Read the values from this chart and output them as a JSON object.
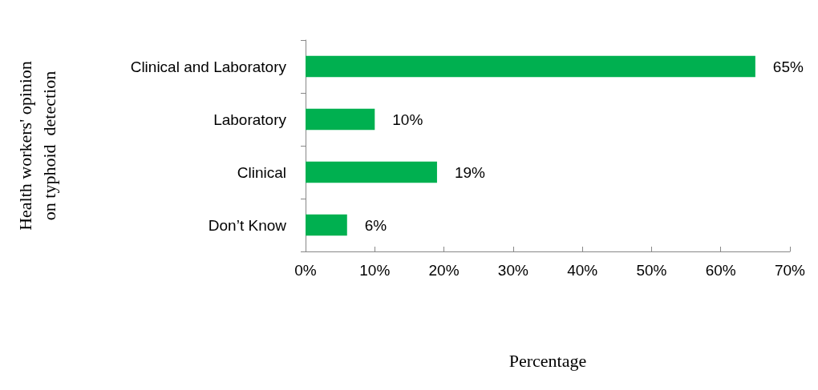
{
  "chart_data": {
    "type": "bar",
    "orientation": "horizontal",
    "categories": [
      "Clinical and Laboratory",
      "Laboratory",
      "Clinical",
      "Don’t Know"
    ],
    "series": [
      {
        "color": "#00b050",
        "values": [
          65,
          10,
          19,
          6
        ],
        "value_labels": [
          "65%",
          "10%",
          "19%",
          "6%"
        ]
      }
    ],
    "xlabel": "Percentage",
    "ylabel": "Health workers' opinion\non typhoid  detection",
    "xlim": [
      0,
      70
    ],
    "xticks": [
      {
        "value": 0,
        "label": "0%"
      },
      {
        "value": 10,
        "label": "10%"
      },
      {
        "value": 20,
        "label": "20%"
      },
      {
        "value": 30,
        "label": "30%"
      },
      {
        "value": 40,
        "label": "40%"
      },
      {
        "value": 50,
        "label": "50%"
      },
      {
        "value": 60,
        "label": "60%"
      },
      {
        "value": 70,
        "label": "70%"
      }
    ],
    "grid": false
  }
}
